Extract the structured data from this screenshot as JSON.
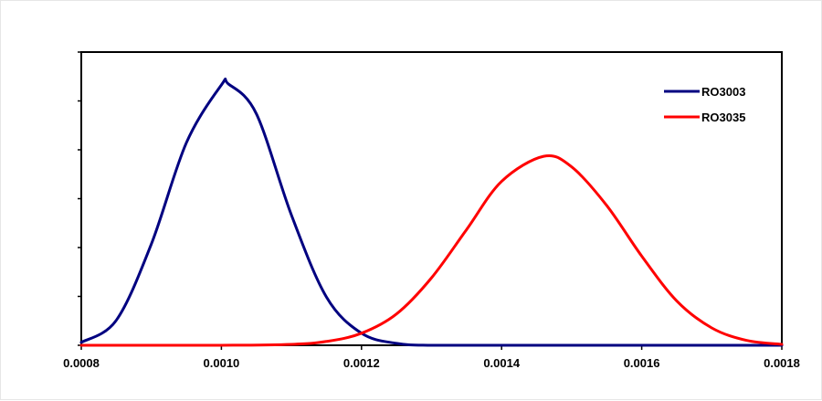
{
  "chart_data": {
    "type": "line",
    "title": "",
    "xlabel": "",
    "ylabel": "",
    "xlim": [
      0.0008,
      0.0018
    ],
    "ylim": [
      0,
      5.4
    ],
    "x_ticks": [
      "0.0008",
      "0.0010",
      "0.0012",
      "0.0014",
      "0.0016",
      "0.0018"
    ],
    "y_tick_count": 7,
    "grid": false,
    "legend_position": "top-right",
    "series": [
      {
        "name": "RO3003",
        "color": "#000080",
        "x": [
          0.0008,
          0.00085,
          0.0009,
          0.00095,
          0.001,
          0.00101,
          0.00105,
          0.0011,
          0.00115,
          0.0012,
          0.00125,
          0.0013,
          0.0014,
          0.0015,
          0.0016,
          0.0017,
          0.0018
        ],
        "y": [
          0.06,
          0.52,
          2.1,
          4.2,
          5.4,
          5.42,
          4.8,
          2.7,
          1.0,
          0.25,
          0.04,
          0.0,
          0.0,
          0.0,
          0.0,
          0.0,
          0.0
        ]
      },
      {
        "name": "RO3035",
        "color": "#ff0000",
        "x": [
          0.0008,
          0.001,
          0.0011,
          0.00115,
          0.0012,
          0.00125,
          0.0013,
          0.00135,
          0.0014,
          0.00146,
          0.0015,
          0.00155,
          0.0016,
          0.00165,
          0.0017,
          0.00175,
          0.0018
        ],
        "y": [
          0.0,
          0.0,
          0.02,
          0.08,
          0.25,
          0.65,
          1.4,
          2.4,
          3.4,
          3.92,
          3.7,
          2.9,
          1.85,
          0.92,
          0.36,
          0.1,
          0.02
        ]
      }
    ]
  }
}
